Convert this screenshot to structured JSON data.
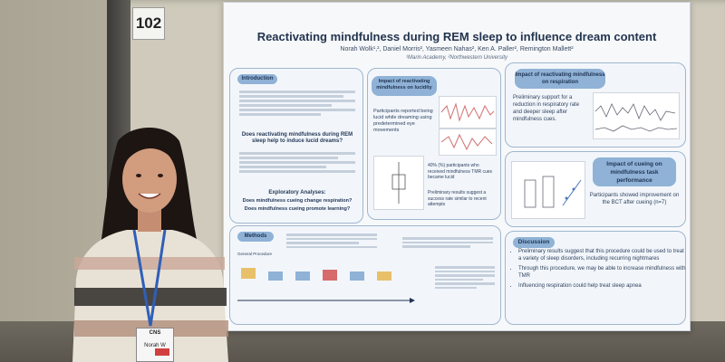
{
  "scene": {
    "booth_number": "102",
    "badge_text": "CNS",
    "badge_name": "Norah W"
  },
  "poster": {
    "title": "Reactivating mindfulness during REM sleep to influence dream content",
    "authors": "Norah Wolk¹,², Daniel Morris², Yasmeen Nahas², Ken A. Paller², Remington Mallett²",
    "affiliations": "¹Marin Academy, ²Northwestern University",
    "intro_title": "Introduction",
    "intro_question": "Does reactivating mindfulness during REM sleep help to induce lucid dreams?",
    "exploratory_title": "Exploratory Analyses:",
    "exploratory_q1": "Does mindfulness cueing change respiration?",
    "exploratory_q2": "Does mindfulness cueing promote learning?",
    "methods_title": "Methods",
    "methods_label": "General Procedure",
    "lucidity_title": "Impact of reactivating mindfulness on lucidity",
    "lucidity_text": "Participants reported being lucid while dreaming using predetermined eye movements",
    "lucidity_result": "40% (%) participants who received mindfulness TMR cues became lucid",
    "lucidity_result2": "Preliminary results suggest a success rate similar to recent attempts",
    "respiration_title": "Impact of reactivating mindfulness on respiration",
    "respiration_text": "Preliminary support for a reduction in respiratory rate and deeper sleep after mindfulness cues.",
    "cueing_title": "Impact of cueing on mindfulness task performance",
    "cueing_text": "Participants showed improvement on the BCT after cueing (n=7)",
    "discussion_title": "Discussion",
    "discussion_items": [
      "Preliminary results suggest that this procedure could be used to treat a variety of sleep disorders, including recurring nightmares",
      "Through this procedure, we may be able to increase mindfulness with TMR",
      "Influencing respiration could help treat sleep apnea"
    ]
  }
}
